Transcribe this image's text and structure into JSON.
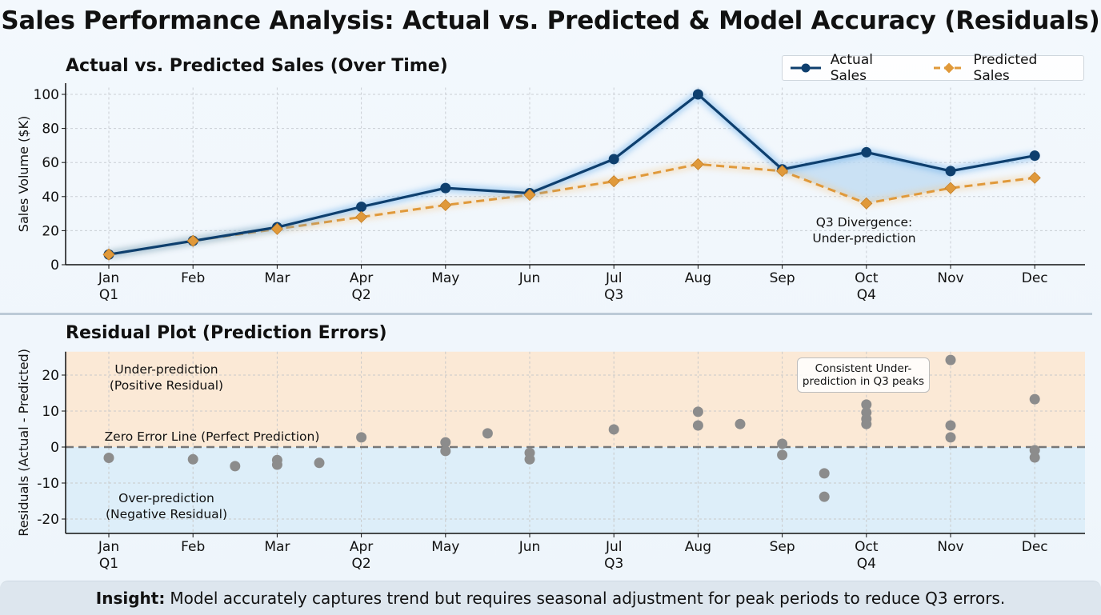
{
  "title": "Sales Performance Analysis: Actual vs. Predicted & Model Accuracy (Residuals)",
  "insight": {
    "label": "Insight:",
    "text": "Model accurately captures trend but requires seasonal adjustment for peak periods to reduce Q3 errors."
  },
  "colors": {
    "actual": "#0e3f6e",
    "predicted": "#e0993a",
    "residual_points": "#8c8c8c",
    "under_band": "#fbe9d6",
    "over_band": "#ddeef9",
    "divergence_fill": "#bcdaf2"
  },
  "chart_data": [
    {
      "type": "line",
      "title": "Actual vs. Predicted Sales (Over Time)",
      "xlabel": "",
      "ylabel": "Sales Volume ($K)",
      "categories": [
        "Jan",
        "Feb",
        "Mar",
        "Apr",
        "May",
        "Jun",
        "Jul",
        "Aug",
        "Sep",
        "Oct",
        "Nov",
        "Dec"
      ],
      "quarter_labels": {
        "Jan": "Q1",
        "Apr": "Q2",
        "Jul": "Q3",
        "Oct": "Q4"
      },
      "yticks": [
        0,
        20,
        40,
        60,
        80,
        100
      ],
      "ylim": [
        0,
        104
      ],
      "grid": true,
      "legend": "top-right",
      "series": [
        {
          "name": "Actual Sales",
          "marker": "circle",
          "style": "solid",
          "values": [
            6,
            14,
            22,
            34,
            45,
            42,
            62,
            100,
            56,
            66,
            55,
            64
          ]
        },
        {
          "name": "Predicted Sales",
          "marker": "diamond",
          "style": "dashed",
          "values": [
            6,
            14,
            21,
            28,
            35,
            41,
            49,
            59,
            55,
            36,
            45,
            51
          ]
        }
      ],
      "shaded_region": {
        "from": "Sep",
        "to": "Nov",
        "between": [
          "Actual Sales",
          "Predicted Sales"
        ]
      },
      "annotations": [
        {
          "text": "Q3 Divergence:\nUnder-prediction",
          "x": "Oct",
          "y": 20
        }
      ]
    },
    {
      "type": "scatter",
      "title": "Residual Plot (Prediction Errors)",
      "xlabel": "",
      "ylabel": "Residuals (Actual - Predicted)",
      "categories": [
        "Jan",
        "Feb",
        "Mar",
        "Apr",
        "May",
        "Jun",
        "Jul",
        "Aug",
        "Sep",
        "Oct",
        "Nov",
        "Dec"
      ],
      "quarter_labels": {
        "Jan": "Q1",
        "Apr": "Q2",
        "Jul": "Q3",
        "Oct": "Q4"
      },
      "yticks": [
        -20,
        -10,
        0,
        10,
        20
      ],
      "ylim": [
        -24,
        26.5
      ],
      "grid": true,
      "points": [
        {
          "x": 1,
          "y": -3.0
        },
        {
          "x": 2,
          "y": -3.4
        },
        {
          "x": 2.5,
          "y": -5.3
        },
        {
          "x": 3,
          "y": -3.6
        },
        {
          "x": 3,
          "y": -4.9
        },
        {
          "x": 3.5,
          "y": -4.4
        },
        {
          "x": 4,
          "y": 2.7
        },
        {
          "x": 5,
          "y": 1.3
        },
        {
          "x": 5,
          "y": -1.1
        },
        {
          "x": 5.5,
          "y": 3.8
        },
        {
          "x": 6,
          "y": -1.6
        },
        {
          "x": 6,
          "y": -3.4
        },
        {
          "x": 7,
          "y": 4.9
        },
        {
          "x": 8,
          "y": 9.8
        },
        {
          "x": 8,
          "y": 6.0
        },
        {
          "x": 8.5,
          "y": 6.4
        },
        {
          "x": 9,
          "y": 0.9
        },
        {
          "x": 9,
          "y": -2.2
        },
        {
          "x": 9.5,
          "y": -7.3
        },
        {
          "x": 9.5,
          "y": -13.8
        },
        {
          "x": 10,
          "y": 11.8
        },
        {
          "x": 10,
          "y": 9.6
        },
        {
          "x": 10,
          "y": 7.8
        },
        {
          "x": 10,
          "y": 6.4
        },
        {
          "x": 11,
          "y": 24.2
        },
        {
          "x": 11,
          "y": 6.0
        },
        {
          "x": 11,
          "y": 2.7
        },
        {
          "x": 12,
          "y": 13.3
        },
        {
          "x": 12,
          "y": -0.9
        },
        {
          "x": 12,
          "y": -2.9
        }
      ],
      "reference_line": {
        "y": 0,
        "label": "Zero Error Line (Perfect Prediction)",
        "style": "dashed"
      },
      "bands": [
        {
          "range": [
            0,
            26.5
          ],
          "label": "Under-prediction\n(Positive Residual)"
        },
        {
          "range": [
            -24,
            0
          ],
          "label": "Over-prediction\n(Negative Residual)"
        }
      ],
      "annotations": [
        {
          "text": "Consistent Under-\nprediction in Q3 peaks",
          "boxed": true
        }
      ]
    }
  ]
}
